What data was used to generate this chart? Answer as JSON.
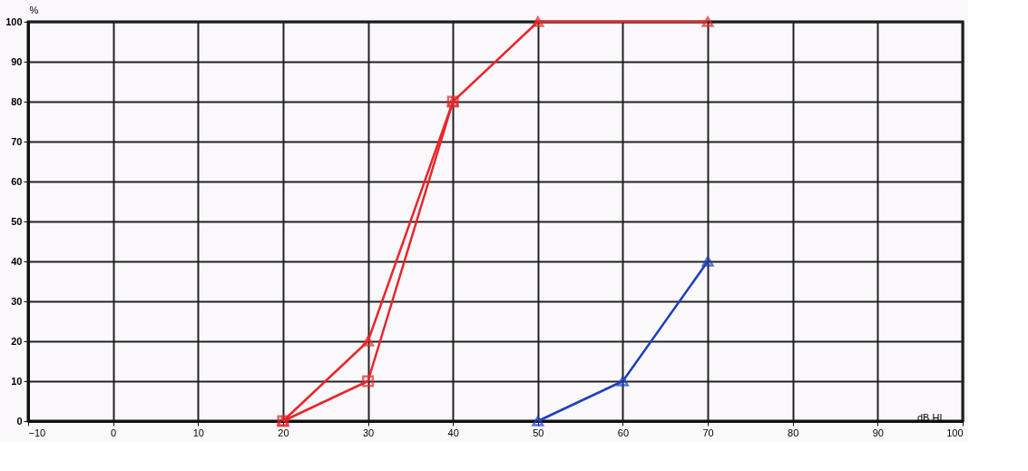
{
  "chart_data": {
    "type": "line",
    "xlabel": "dB HL",
    "ylabel": "%",
    "xlim": [
      -10,
      100
    ],
    "xticks": [
      -10,
      0,
      10,
      20,
      30,
      40,
      50,
      60,
      70,
      80,
      90,
      100
    ],
    "ylim": [
      0,
      100
    ],
    "yticks": [
      0,
      10,
      20,
      30,
      40,
      50,
      60,
      70,
      80,
      90,
      100
    ],
    "grid": true,
    "marker": "triangle",
    "line_style": "solid",
    "series": [
      {
        "color": "#e8262a",
        "x": [
          20,
          30,
          40,
          50,
          70
        ],
        "values": [
          0,
          20,
          80,
          100,
          100
        ]
      },
      {
        "color": "#e8262a",
        "x": [
          20,
          30,
          40
        ],
        "values": [
          0,
          10,
          80
        ],
        "marker": "square"
      },
      {
        "color": "#1f3fbf",
        "x": [
          50,
          60,
          70
        ],
        "values": [
          0,
          10,
          40
        ]
      }
    ]
  }
}
